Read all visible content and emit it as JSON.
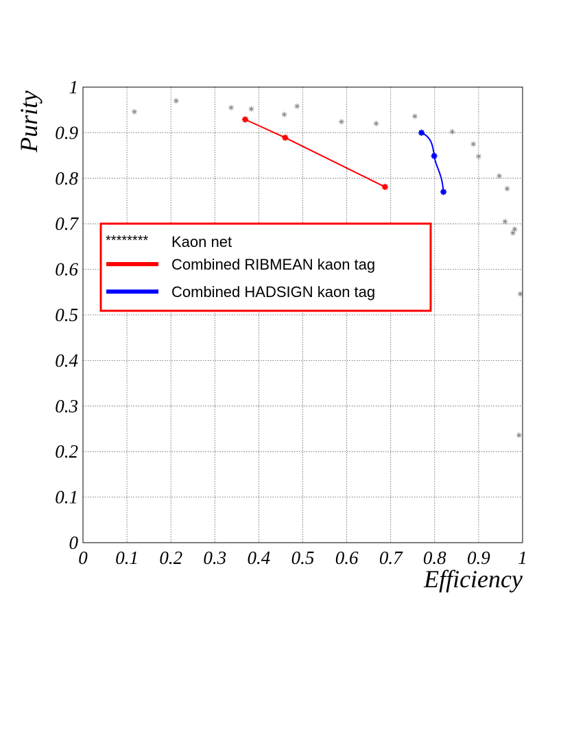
{
  "chart_data": {
    "type": "scatter",
    "title": "",
    "xlabel": "Efficiency",
    "ylabel": "Purity",
    "xlim": [
      0,
      1
    ],
    "ylim": [
      0,
      1
    ],
    "grid": true,
    "legend_placement": "center-left",
    "x_ticks": [
      "0",
      "0.1",
      "0.2",
      "0.3",
      "0.4",
      "0.5",
      "0.6",
      "0.7",
      "0.8",
      "0.9",
      "1"
    ],
    "y_ticks": [
      "0",
      "0.1",
      "0.2",
      "0.3",
      "0.4",
      "0.5",
      "0.6",
      "0.7",
      "0.8",
      "0.9",
      "1"
    ],
    "series": [
      {
        "name": "Kaon net",
        "legend_marker": "********",
        "style": "markers",
        "color": "#808080",
        "points": [
          {
            "x": 0.117,
            "y": 0.946
          },
          {
            "x": 0.212,
            "y": 0.97
          },
          {
            "x": 0.337,
            "y": 0.955
          },
          {
            "x": 0.383,
            "y": 0.952
          },
          {
            "x": 0.458,
            "y": 0.94
          },
          {
            "x": 0.487,
            "y": 0.958
          },
          {
            "x": 0.588,
            "y": 0.924
          },
          {
            "x": 0.667,
            "y": 0.92
          },
          {
            "x": 0.755,
            "y": 0.936
          },
          {
            "x": 0.84,
            "y": 0.902
          },
          {
            "x": 0.888,
            "y": 0.875
          },
          {
            "x": 0.9,
            "y": 0.848
          },
          {
            "x": 0.947,
            "y": 0.805
          },
          {
            "x": 0.965,
            "y": 0.777
          },
          {
            "x": 0.96,
            "y": 0.705
          },
          {
            "x": 0.982,
            "y": 0.688
          },
          {
            "x": 0.978,
            "y": 0.68
          },
          {
            "x": 0.995,
            "y": 0.546
          },
          {
            "x": 0.992,
            "y": 0.236
          }
        ]
      },
      {
        "name": "Combined RIBMEAN kaon tag",
        "style": "line-markers",
        "color": "#ff0000",
        "points": [
          {
            "x": 0.369,
            "y": 0.929
          },
          {
            "x": 0.46,
            "y": 0.889
          },
          {
            "x": 0.687,
            "y": 0.781
          }
        ]
      },
      {
        "name": "Combined HADSIGN kaon tag",
        "style": "line-markers",
        "color": "#0000ff",
        "points": [
          {
            "x": 0.77,
            "y": 0.9
          },
          {
            "x": 0.799,
            "y": 0.849
          },
          {
            "x": 0.82,
            "y": 0.77
          }
        ]
      }
    ]
  }
}
